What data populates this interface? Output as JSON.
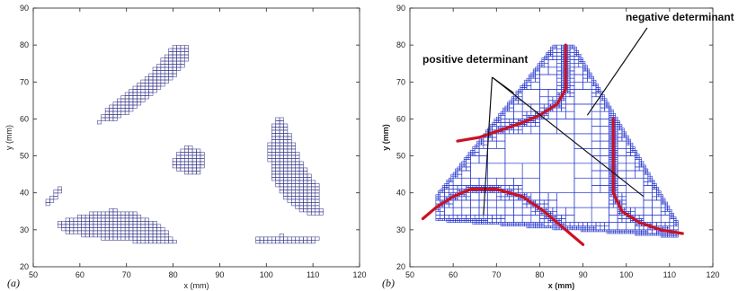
{
  "chart_data": [
    {
      "type": "scatter",
      "panel_label": "(a)",
      "xlabel": "x (mm)",
      "ylabel": "y (mm)",
      "xlim": [
        50,
        120
      ],
      "ylim": [
        20,
        90
      ],
      "xticks": [
        50,
        60,
        70,
        80,
        90,
        100,
        110,
        120
      ],
      "yticks": [
        20,
        30,
        40,
        50,
        60,
        70,
        80,
        90
      ],
      "grid": false,
      "cell_color": "#3a3a8c",
      "regions": [
        {
          "shape": "upper-left band",
          "outline": [
            [
              64,
              59
            ],
            [
              66,
              63
            ],
            [
              70,
              67
            ],
            [
              75,
              72
            ],
            [
              79,
              78
            ],
            [
              80.5,
              80
            ],
            [
              83,
              80
            ],
            [
              83,
              76
            ],
            [
              80,
              71
            ],
            [
              76,
              67
            ],
            [
              72,
              63
            ],
            [
              68,
              60
            ],
            [
              64,
              59
            ]
          ]
        },
        {
          "shape": "center blob",
          "outline": [
            [
              80,
              47
            ],
            [
              80.5,
              50
            ],
            [
              82.5,
              52.5
            ],
            [
              86,
              52
            ],
            [
              87,
              49
            ],
            [
              86,
              45.5
            ],
            [
              83,
              45
            ],
            [
              80,
              47
            ]
          ]
        },
        {
          "shape": "right band",
          "outline": [
            [
              102,
              60
            ],
            [
              103.5,
              60
            ],
            [
              105,
              56
            ],
            [
              107,
              50
            ],
            [
              109,
              45
            ],
            [
              111,
              42
            ],
            [
              112,
              34
            ],
            [
              110,
              34
            ],
            [
              106,
              36
            ],
            [
              103,
              40
            ],
            [
              101,
              45
            ],
            [
              100.5,
              52
            ],
            [
              101,
              56
            ],
            [
              102,
              60
            ]
          ]
        },
        {
          "shape": "lower-left band",
          "outline": [
            [
              55,
              32
            ],
            [
              58,
              33
            ],
            [
              62,
              34.5
            ],
            [
              67,
              35.5
            ],
            [
              72,
              34.5
            ],
            [
              76,
              32
            ],
            [
              79,
              29
            ],
            [
              81,
              26
            ],
            [
              78,
              26
            ],
            [
              70,
              27
            ],
            [
              62,
              28
            ],
            [
              56,
              29.5
            ],
            [
              55,
              32
            ]
          ]
        },
        {
          "shape": "lower-right band",
          "outline": [
            [
              97,
              26
            ],
            [
              98,
              28
            ],
            [
              103,
              28.5
            ],
            [
              110,
              28
            ],
            [
              112,
              27.5
            ],
            [
              110,
              26.5
            ],
            [
              103,
              26
            ],
            [
              97,
              26
            ]
          ]
        },
        {
          "shape": "small left tail",
          "outline": [
            [
              52.5,
              36
            ],
            [
              53,
              38
            ],
            [
              54.5,
              40
            ],
            [
              56,
              42
            ],
            [
              56,
              40
            ],
            [
              54.5,
              38
            ],
            [
              53,
              36
            ],
            [
              52.5,
              36
            ]
          ]
        }
      ]
    },
    {
      "type": "scatter",
      "panel_label": "(b)",
      "xlabel": "x (mm)",
      "ylabel": "y (mm)",
      "xlim": [
        50,
        120
      ],
      "ylim": [
        20,
        90
      ],
      "xticks": [
        50,
        60,
        70,
        80,
        90,
        100,
        110,
        120
      ],
      "yticks": [
        20,
        30,
        40,
        50,
        60,
        70,
        80,
        90
      ],
      "grid": false,
      "mesh_color": "#2233cc",
      "curve_color": "#cc1122",
      "annotations": [
        {
          "text": "negative determinant",
          "pointer_targets": [
            [
              91,
              61
            ]
          ],
          "origin": [
            104,
            78
          ]
        },
        {
          "text": "positive determinant",
          "pointer_targets": [
            [
              74,
              67
            ],
            [
              67,
              34
            ],
            [
              104,
              39
            ]
          ],
          "origin": [
            69,
            72
          ]
        }
      ],
      "triangle": [
        [
          52,
          33
        ],
        [
          86,
          84
        ],
        [
          114,
          28
        ]
      ],
      "red_curves": [
        {
          "points": [
            [
              61,
              54
            ],
            [
              66,
              55
            ],
            [
              71,
              57
            ],
            [
              76,
              59
            ],
            [
              80,
              61
            ],
            [
              84,
              64
            ],
            [
              86,
              68
            ],
            [
              86,
              74
            ],
            [
              86,
              80
            ]
          ]
        },
        {
          "points": [
            [
              97,
              60
            ],
            [
              97,
              50
            ],
            [
              97,
              40
            ],
            [
              99,
              35
            ],
            [
              103,
              32
            ],
            [
              108,
              30
            ],
            [
              113,
              29
            ]
          ]
        },
        {
          "points": [
            [
              53,
              33
            ],
            [
              56,
              36
            ],
            [
              60,
              39
            ],
            [
              64,
              41
            ],
            [
              70,
              41
            ],
            [
              76,
              39
            ],
            [
              81,
              35
            ],
            [
              86,
              30
            ],
            [
              90,
              26
            ]
          ]
        }
      ]
    }
  ]
}
